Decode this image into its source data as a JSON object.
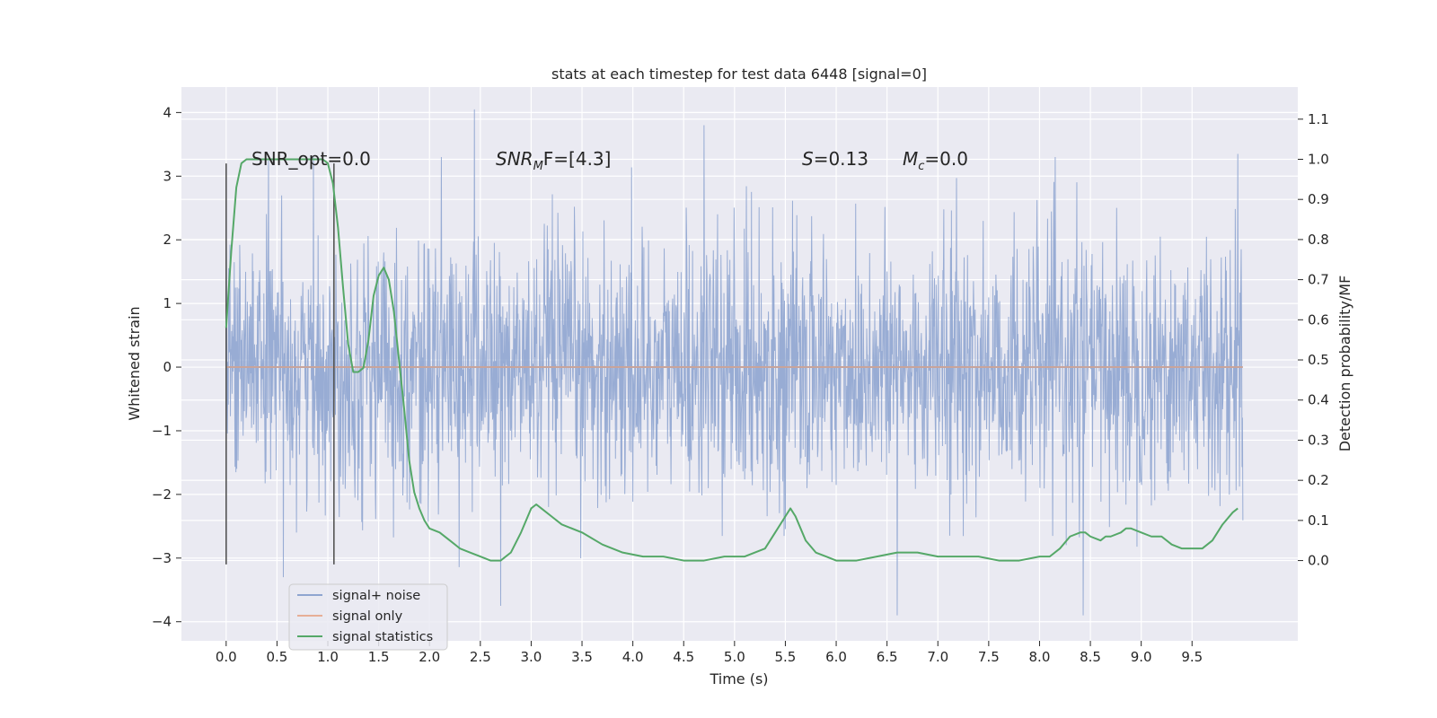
{
  "chart_data": {
    "type": "line",
    "title": "stats at each timestep for test data 6448 [signal=0]",
    "xlabel": "Time (s)",
    "ylabel_left": "Whitened strain",
    "ylabel_right": "Detection probability/MF",
    "xlim": [
      -0.44,
      10.54
    ],
    "ylim_left": [
      -4.3,
      4.4
    ],
    "ylim_right": [
      -0.2,
      1.18
    ],
    "x_ticks": [
      0.0,
      0.5,
      1.0,
      1.5,
      2.0,
      2.5,
      3.0,
      3.5,
      4.0,
      4.5,
      5.0,
      5.5,
      6.0,
      6.5,
      7.0,
      7.5,
      8.0,
      8.5,
      9.0,
      9.5
    ],
    "x_tick_labels": [
      "0.0",
      "0.5",
      "1.0",
      "1.5",
      "2.0",
      "2.5",
      "3.0",
      "3.5",
      "4.0",
      "4.5",
      "5.0",
      "5.5",
      "6.0",
      "6.5",
      "7.0",
      "7.5",
      "8.0",
      "8.5",
      "9.0",
      "9.5"
    ],
    "y_left_ticks": [
      4,
      3,
      2,
      1,
      0,
      -1,
      -2,
      -3,
      -4
    ],
    "y_left_tick_labels": [
      "4",
      "3",
      "2",
      "1",
      "0",
      "−1",
      "−2",
      "−3",
      "−4"
    ],
    "y_right_ticks": [
      1.1,
      1.0,
      0.9,
      0.8,
      0.7,
      0.6,
      0.5,
      0.4,
      0.3,
      0.2,
      0.1,
      0.0
    ],
    "y_right_tick_labels": [
      "1.1",
      "1.0",
      "0.9",
      "0.8",
      "0.7",
      "0.6",
      "0.5",
      "0.4",
      "0.3",
      "0.2",
      "0.1",
      "0.0"
    ],
    "grid": true,
    "legend_position": "lower-left",
    "series": [
      {
        "name": "signal+ noise",
        "axis": "left",
        "style": "dense noise (whitened strain), spans t = 0.0 to 10.0 s, bulk within about ±1.3, peaks ~4.0 at 2.44 s and ~−3.8 at 2.7 s",
        "peak_points": [
          [
            0.0,
            2.5
          ],
          [
            2.44,
            4.05
          ],
          [
            2.7,
            -3.75
          ],
          [
            4.7,
            3.8
          ],
          [
            6.6,
            -3.9
          ],
          [
            8.43,
            -3.9
          ],
          [
            9.95,
            3.35
          ]
        ]
      },
      {
        "name": "signal only",
        "axis": "left",
        "x": [
          0.0,
          10.0
        ],
        "y": [
          0.0,
          0.0
        ]
      },
      {
        "name": "signal statistics",
        "axis": "right",
        "x": [
          0.0,
          0.05,
          0.1,
          0.15,
          0.2,
          0.3,
          0.5,
          0.7,
          0.9,
          0.95,
          1.0,
          1.05,
          1.1,
          1.15,
          1.2,
          1.25,
          1.3,
          1.35,
          1.4,
          1.45,
          1.5,
          1.55,
          1.6,
          1.65,
          1.7,
          1.75,
          1.8,
          1.85,
          1.9,
          1.95,
          2.0,
          2.1,
          2.2,
          2.3,
          2.4,
          2.5,
          2.6,
          2.7,
          2.8,
          2.9,
          3.0,
          3.05,
          3.1,
          3.2,
          3.3,
          3.5,
          3.7,
          3.9,
          4.1,
          4.3,
          4.5,
          4.7,
          4.9,
          5.1,
          5.3,
          5.4,
          5.5,
          5.55,
          5.6,
          5.65,
          5.7,
          5.8,
          5.9,
          6.0,
          6.2,
          6.4,
          6.6,
          6.8,
          7.0,
          7.2,
          7.4,
          7.6,
          7.8,
          8.0,
          8.1,
          8.2,
          8.3,
          8.4,
          8.45,
          8.5,
          8.6,
          8.65,
          8.7,
          8.8,
          8.85,
          8.9,
          9.0,
          9.1,
          9.2,
          9.3,
          9.4,
          9.5,
          9.55,
          9.6,
          9.7,
          9.8,
          9.9,
          9.95
        ],
        "y": [
          0.58,
          0.77,
          0.93,
          0.99,
          1.0,
          1.0,
          1.0,
          1.0,
          1.0,
          1.0,
          0.99,
          0.94,
          0.83,
          0.68,
          0.54,
          0.47,
          0.47,
          0.48,
          0.55,
          0.66,
          0.71,
          0.73,
          0.7,
          0.62,
          0.5,
          0.38,
          0.25,
          0.17,
          0.13,
          0.1,
          0.08,
          0.07,
          0.05,
          0.03,
          0.02,
          0.01,
          0.0,
          0.0,
          0.02,
          0.07,
          0.13,
          0.14,
          0.13,
          0.11,
          0.09,
          0.07,
          0.04,
          0.02,
          0.01,
          0.01,
          0.0,
          0.0,
          0.01,
          0.01,
          0.03,
          0.07,
          0.11,
          0.13,
          0.11,
          0.08,
          0.05,
          0.02,
          0.01,
          0.0,
          0.0,
          0.01,
          0.02,
          0.02,
          0.01,
          0.01,
          0.01,
          0.0,
          0.0,
          0.01,
          0.01,
          0.03,
          0.06,
          0.07,
          0.07,
          0.06,
          0.05,
          0.06,
          0.06,
          0.07,
          0.08,
          0.08,
          0.07,
          0.06,
          0.06,
          0.04,
          0.03,
          0.03,
          0.03,
          0.03,
          0.05,
          0.09,
          0.12,
          0.13
        ]
      }
    ],
    "vertical_lines": [
      0.0,
      1.06
    ],
    "vertical_lines_yrange": [
      -3.1,
      3.2
    ],
    "annotations": [
      {
        "text": "SNR_opt=0.0",
        "x": 0.2,
        "y": 3.15
      },
      {
        "text_main": "SNR",
        "text_sub": "M",
        "text_tail": "F=[4.3]",
        "x": 2.6,
        "y": 3.15
      },
      {
        "text_main": "S",
        "text_tail": "=0.13",
        "x": 5.62,
        "y": 3.15
      },
      {
        "text_main": "M",
        "text_sub": "c",
        "text_tail": "=0.0",
        "x": 6.62,
        "y": 3.15
      }
    ],
    "colors": {
      "noise": "#8fa5d0",
      "signal_only": "#dd8452",
      "statistics": "#55a868",
      "axes_bg": "#eaeaf2",
      "grid": "#ffffff",
      "vline": "#555555"
    }
  }
}
